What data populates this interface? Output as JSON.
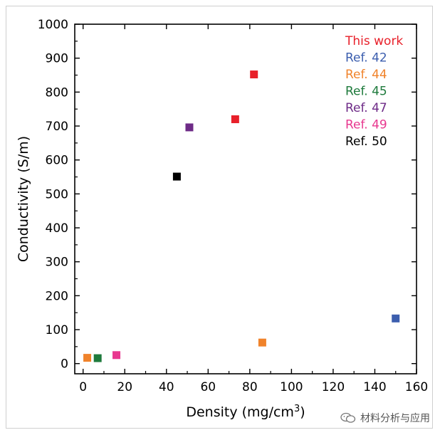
{
  "chart_data": {
    "type": "scatter",
    "title": "",
    "xlabel": "Density (mg/cm",
    "xlabel_sup": "3",
    "xlabel_tail": ")",
    "ylabel": "Conductivity (S/m)",
    "xlim": [
      -4,
      160
    ],
    "ylim": [
      -30,
      1000
    ],
    "x_ticks": [
      0,
      20,
      40,
      60,
      80,
      100,
      120,
      140,
      160
    ],
    "y_ticks": [
      0,
      100,
      200,
      300,
      400,
      500,
      600,
      700,
      800,
      900,
      1000
    ],
    "legend_position": "top-right",
    "series": [
      {
        "name": "This work",
        "color": "#e8202a",
        "points": [
          [
            73,
            720
          ],
          [
            82,
            852
          ]
        ]
      },
      {
        "name": "Ref. 42",
        "color": "#3c5eae",
        "points": [
          [
            150,
            133
          ]
        ]
      },
      {
        "name": "Ref. 44",
        "color": "#f0832b",
        "points": [
          [
            2,
            17
          ],
          [
            86,
            62
          ]
        ]
      },
      {
        "name": "Ref. 45",
        "color": "#1e7a3c",
        "points": [
          [
            7,
            16
          ]
        ]
      },
      {
        "name": "Ref. 47",
        "color": "#6e2b87",
        "points": [
          [
            51,
            696
          ]
        ]
      },
      {
        "name": "Ref. 49",
        "color": "#e8388f",
        "points": [
          [
            16,
            25
          ]
        ]
      },
      {
        "name": "Ref. 50",
        "color": "#000000",
        "points": [
          [
            45,
            551
          ]
        ]
      }
    ]
  },
  "watermark": {
    "text": "材料分析与应用",
    "icon": "wechat-icon"
  }
}
